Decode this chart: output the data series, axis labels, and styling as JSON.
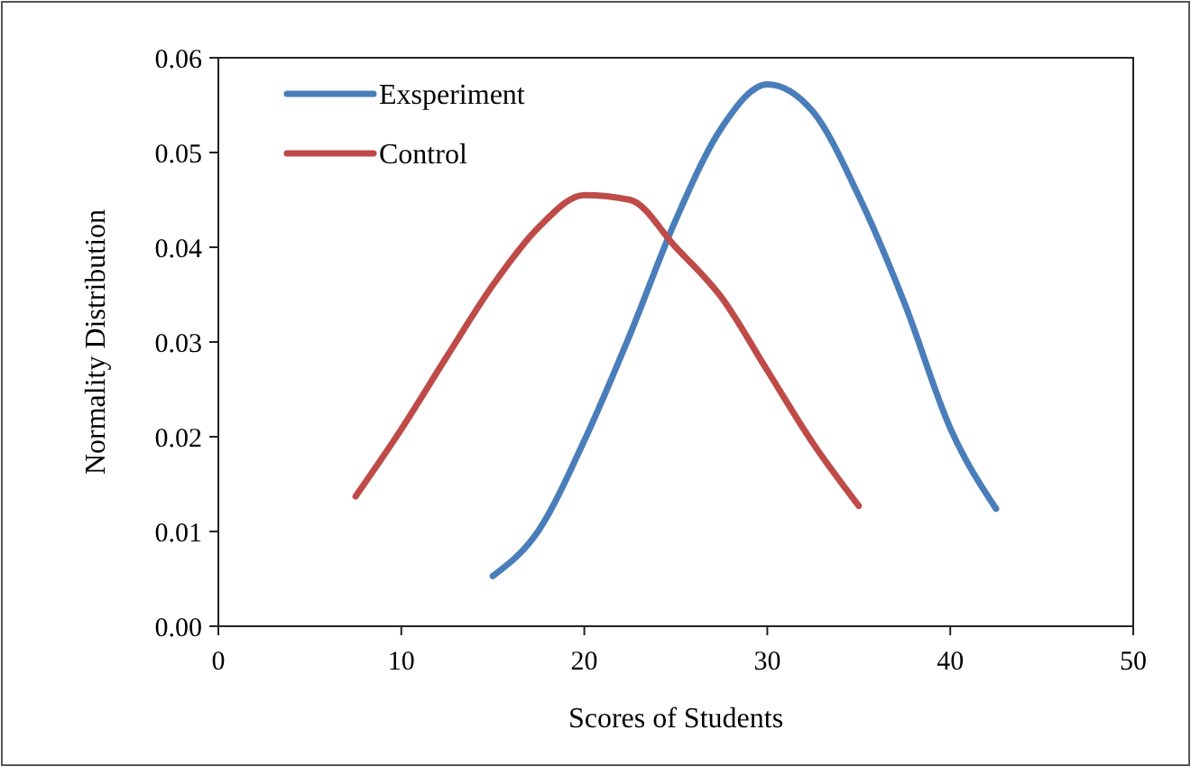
{
  "chart_data": {
    "type": "line",
    "xlabel": "Scores of  Students",
    "ylabel": "Normality Distribution",
    "xlim": [
      0,
      50
    ],
    "xticks": [
      0,
      10,
      20,
      30,
      40,
      50
    ],
    "ylim": [
      0,
      0.06
    ],
    "yticks": [
      {
        "value": 0,
        "label": "0.00"
      },
      0.01,
      0.02,
      0.03,
      0.04,
      0.05,
      0.06
    ],
    "grid": false,
    "legend": "top left",
    "marker": "none",
    "line_style": "solid",
    "series": [
      {
        "name": "Exsperiment",
        "color": "#4a7ebb",
        "x": [
          15,
          17.5,
          20,
          22.5,
          25,
          27.5,
          30,
          32.5,
          35,
          37.5,
          40,
          42.5
        ],
        "values": [
          0.0053,
          0.0101,
          0.0196,
          0.0308,
          0.0429,
          0.0526,
          0.0572,
          0.0543,
          0.0454,
          0.0341,
          0.0209,
          0.0124
        ]
      },
      {
        "name": "Control",
        "color": "#be4b48",
        "x": [
          7.5,
          10,
          12.5,
          15,
          17.5,
          20,
          22.5,
          25,
          27.5,
          30,
          32.5,
          35
        ],
        "values": [
          0.0137,
          0.0208,
          0.0285,
          0.036,
          0.0421,
          0.0455,
          0.045,
          0.04,
          0.0347,
          0.027,
          0.0193,
          0.0127
        ]
      }
    ]
  }
}
